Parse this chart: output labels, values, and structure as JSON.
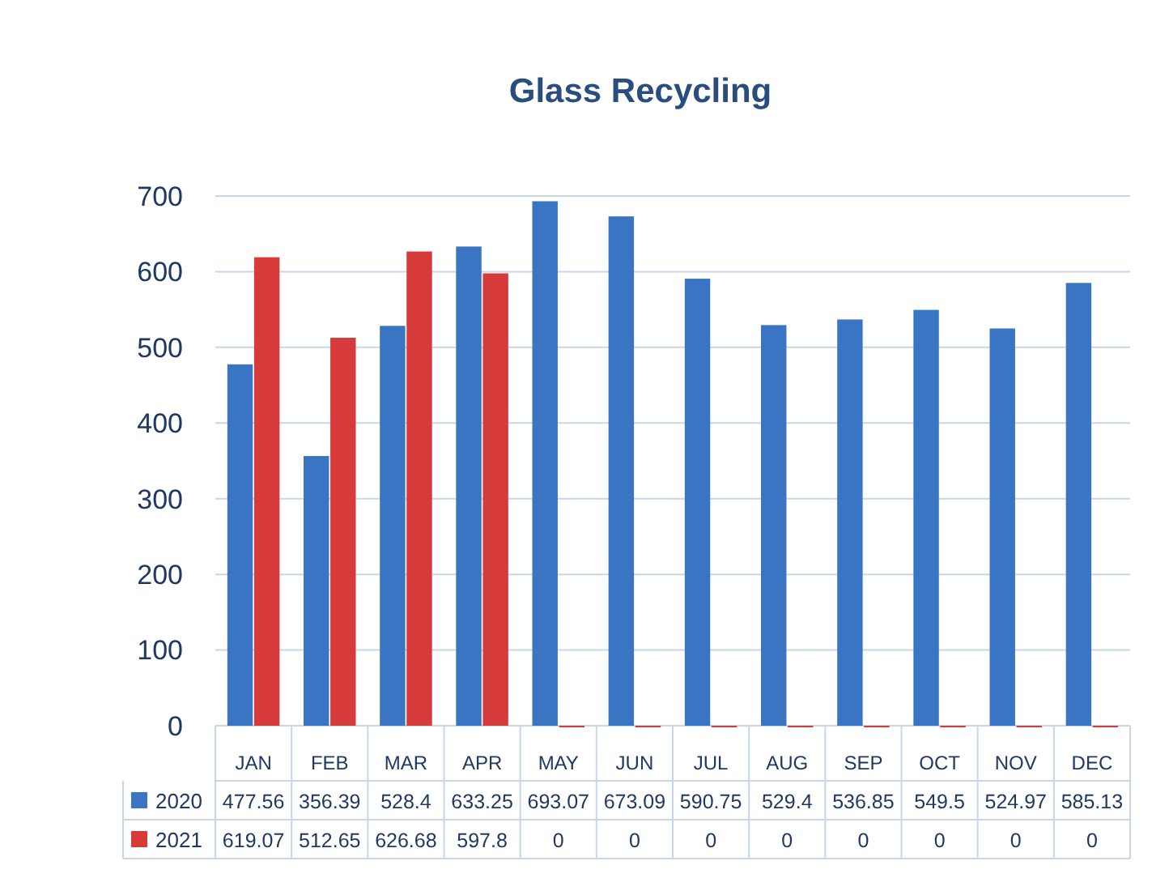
{
  "chart_data": {
    "type": "bar",
    "title": "Glass Recycling",
    "categories": [
      "JAN",
      "FEB",
      "MAR",
      "APR",
      "MAY",
      "JUN",
      "JUL",
      "AUG",
      "SEP",
      "OCT",
      "NOV",
      "DEC"
    ],
    "series": [
      {
        "name": "2020",
        "color": "#3a75c4",
        "values": [
          477.56,
          356.39,
          528.4,
          633.25,
          693.07,
          673.09,
          590.75,
          529.4,
          536.85,
          549.5,
          524.97,
          585.13
        ]
      },
      {
        "name": "2021",
        "color": "#d63a3a",
        "values": [
          619.07,
          512.65,
          626.68,
          597.8,
          0,
          0,
          0,
          0,
          0,
          0,
          0,
          0
        ]
      }
    ],
    "ylim": [
      0,
      700
    ],
    "yticks": [
      0,
      100,
      200,
      300,
      400,
      500,
      600,
      700
    ],
    "grid": "y",
    "legend": "bottom",
    "data_labels": true
  }
}
